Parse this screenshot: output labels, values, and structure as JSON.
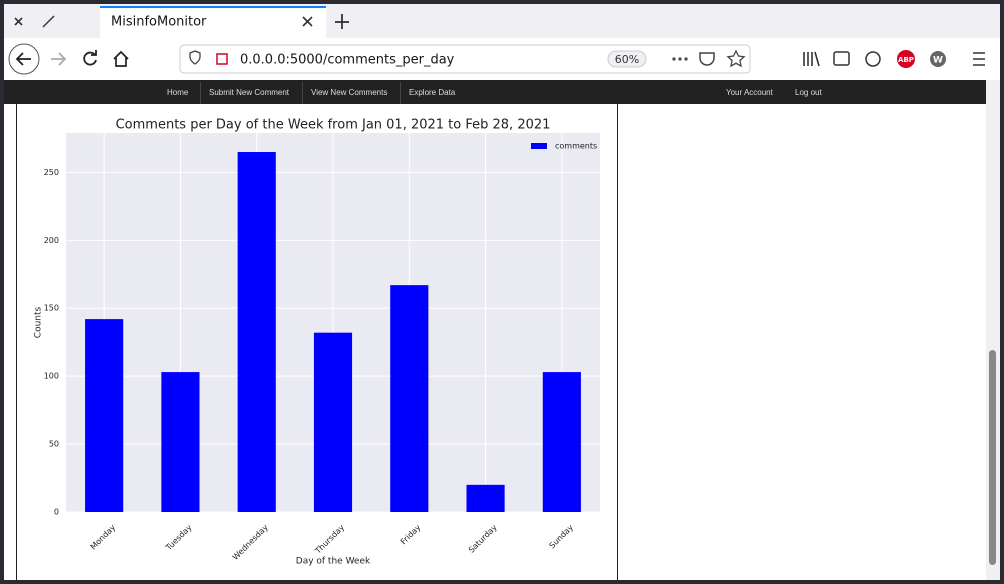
{
  "browser": {
    "tab_title": "MisinfoMonitor",
    "url": "0.0.0.0:5000/comments_per_day",
    "zoom": "60%",
    "abp": "ABP",
    "w": "W"
  },
  "nav": {
    "left": [
      "Home",
      "Submit New Comment",
      "View New Comments",
      "Explore Data"
    ],
    "right": [
      "Your Account",
      "Log out"
    ]
  },
  "chart_data": {
    "type": "bar",
    "title": "Comments per Day of the Week from Jan 01, 2021 to Feb 28, 2021",
    "x_label": "Day of the Week",
    "y_label": "Counts",
    "categories": [
      "Monday",
      "Tuesday",
      "Wednesday",
      "Thursday",
      "Friday",
      "Saturday",
      "Sunday"
    ],
    "series": [
      {
        "name": "comments",
        "color": "#0000ff",
        "values": [
          142,
          103,
          265,
          132,
          167,
          20,
          103
        ]
      }
    ],
    "ylim": [
      0,
      279
    ],
    "yticks": [
      0,
      50,
      100,
      150,
      200,
      250
    ],
    "grid": true,
    "legend": "upper right"
  }
}
